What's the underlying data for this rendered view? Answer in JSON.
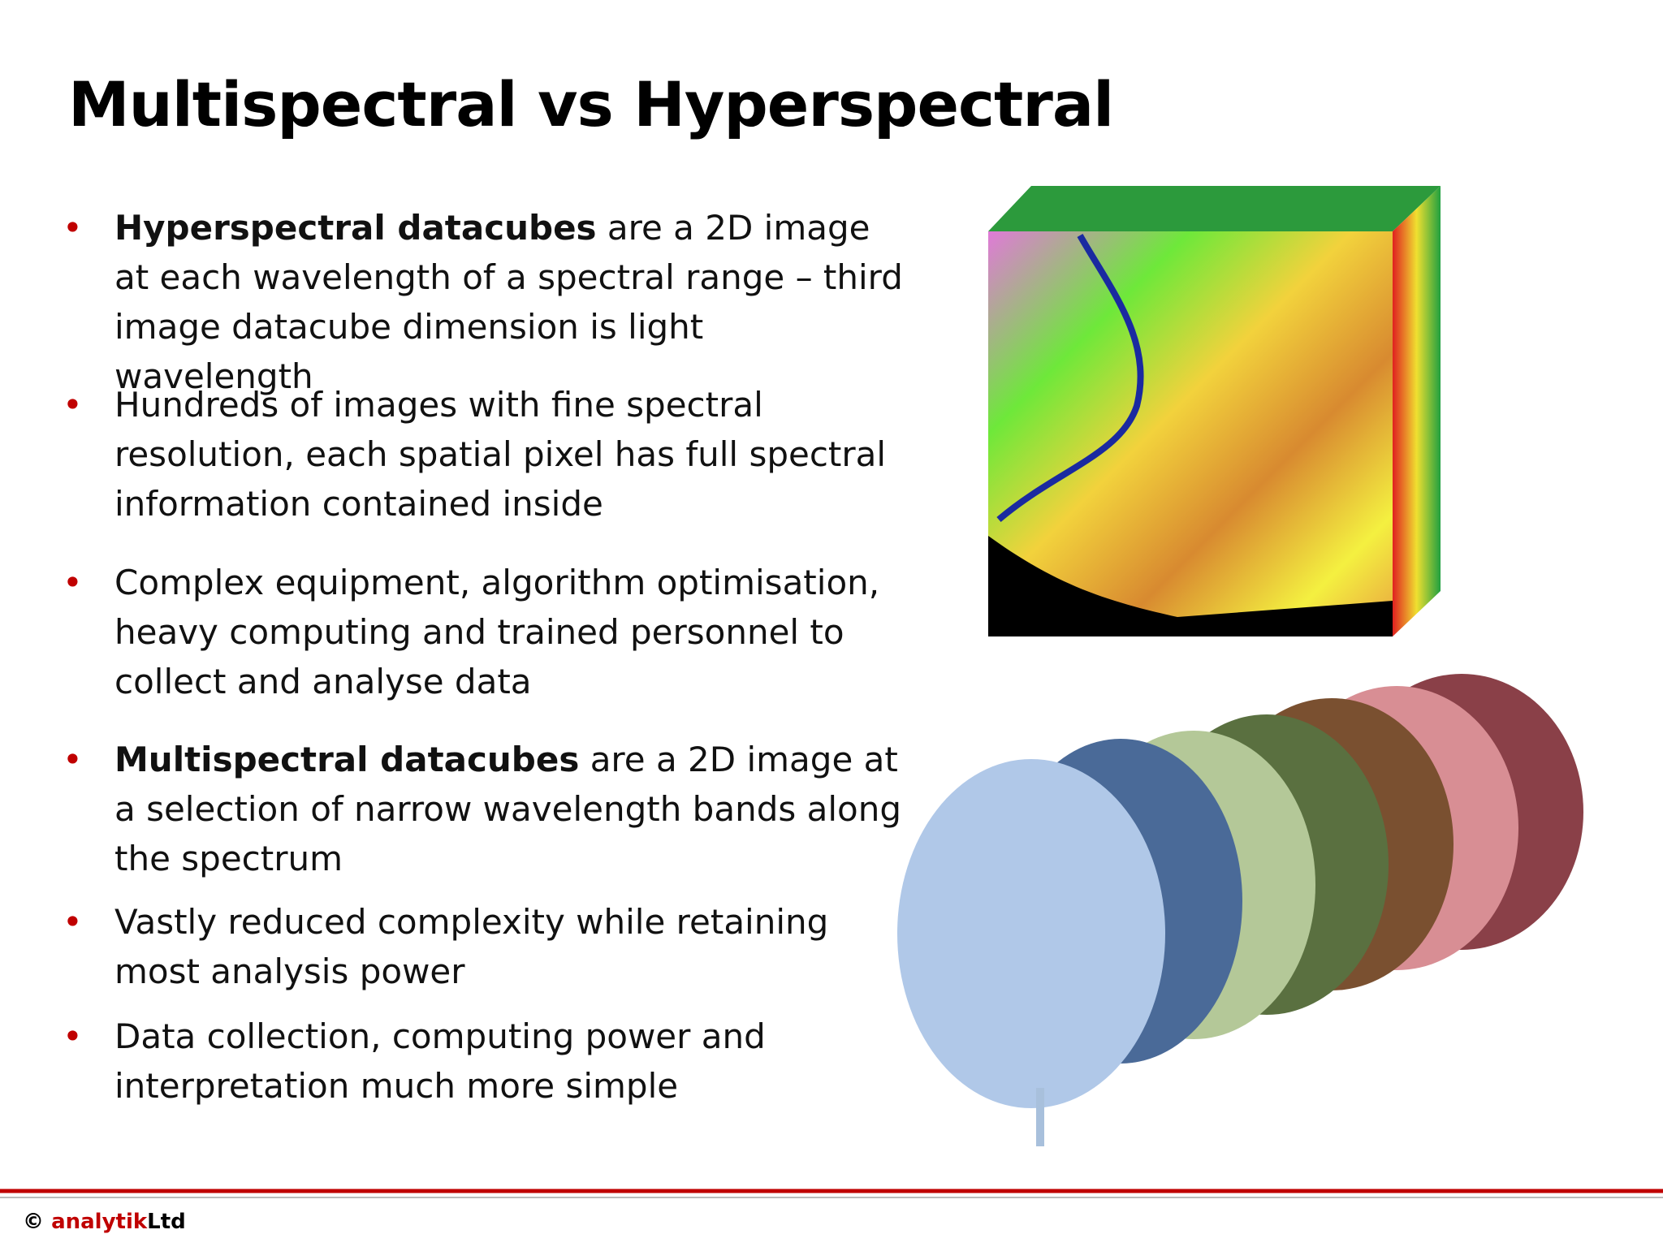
{
  "header": {
    "title": "Multispectral vs Hyperspectral"
  },
  "bullets": [
    {
      "bold": "Hyperspectral datacubes",
      "text": " are a 2D image at each wavelength of a spectral range – third image datacube dimension is light wavelength"
    },
    {
      "text": "Hundreds of images with fine spectral resolution, each spatial pixel has full spectral information contained inside"
    },
    {
      "text": "Complex equipment, algorithm optimisation, heavy computing and trained personnel to collect and analyse data"
    },
    {
      "bold": "Multispectral datacubes",
      "text": " are a 2D image at a selection of narrow wavelength bands along the spectrum"
    },
    {
      "text": "Vastly reduced complexity while retaining most analysis power"
    },
    {
      "text": "Data collection, computing power and interpretation much more simple"
    }
  ],
  "footer": {
    "copyright": "©",
    "brand": "analytik",
    "suffix": "Ltd"
  }
}
